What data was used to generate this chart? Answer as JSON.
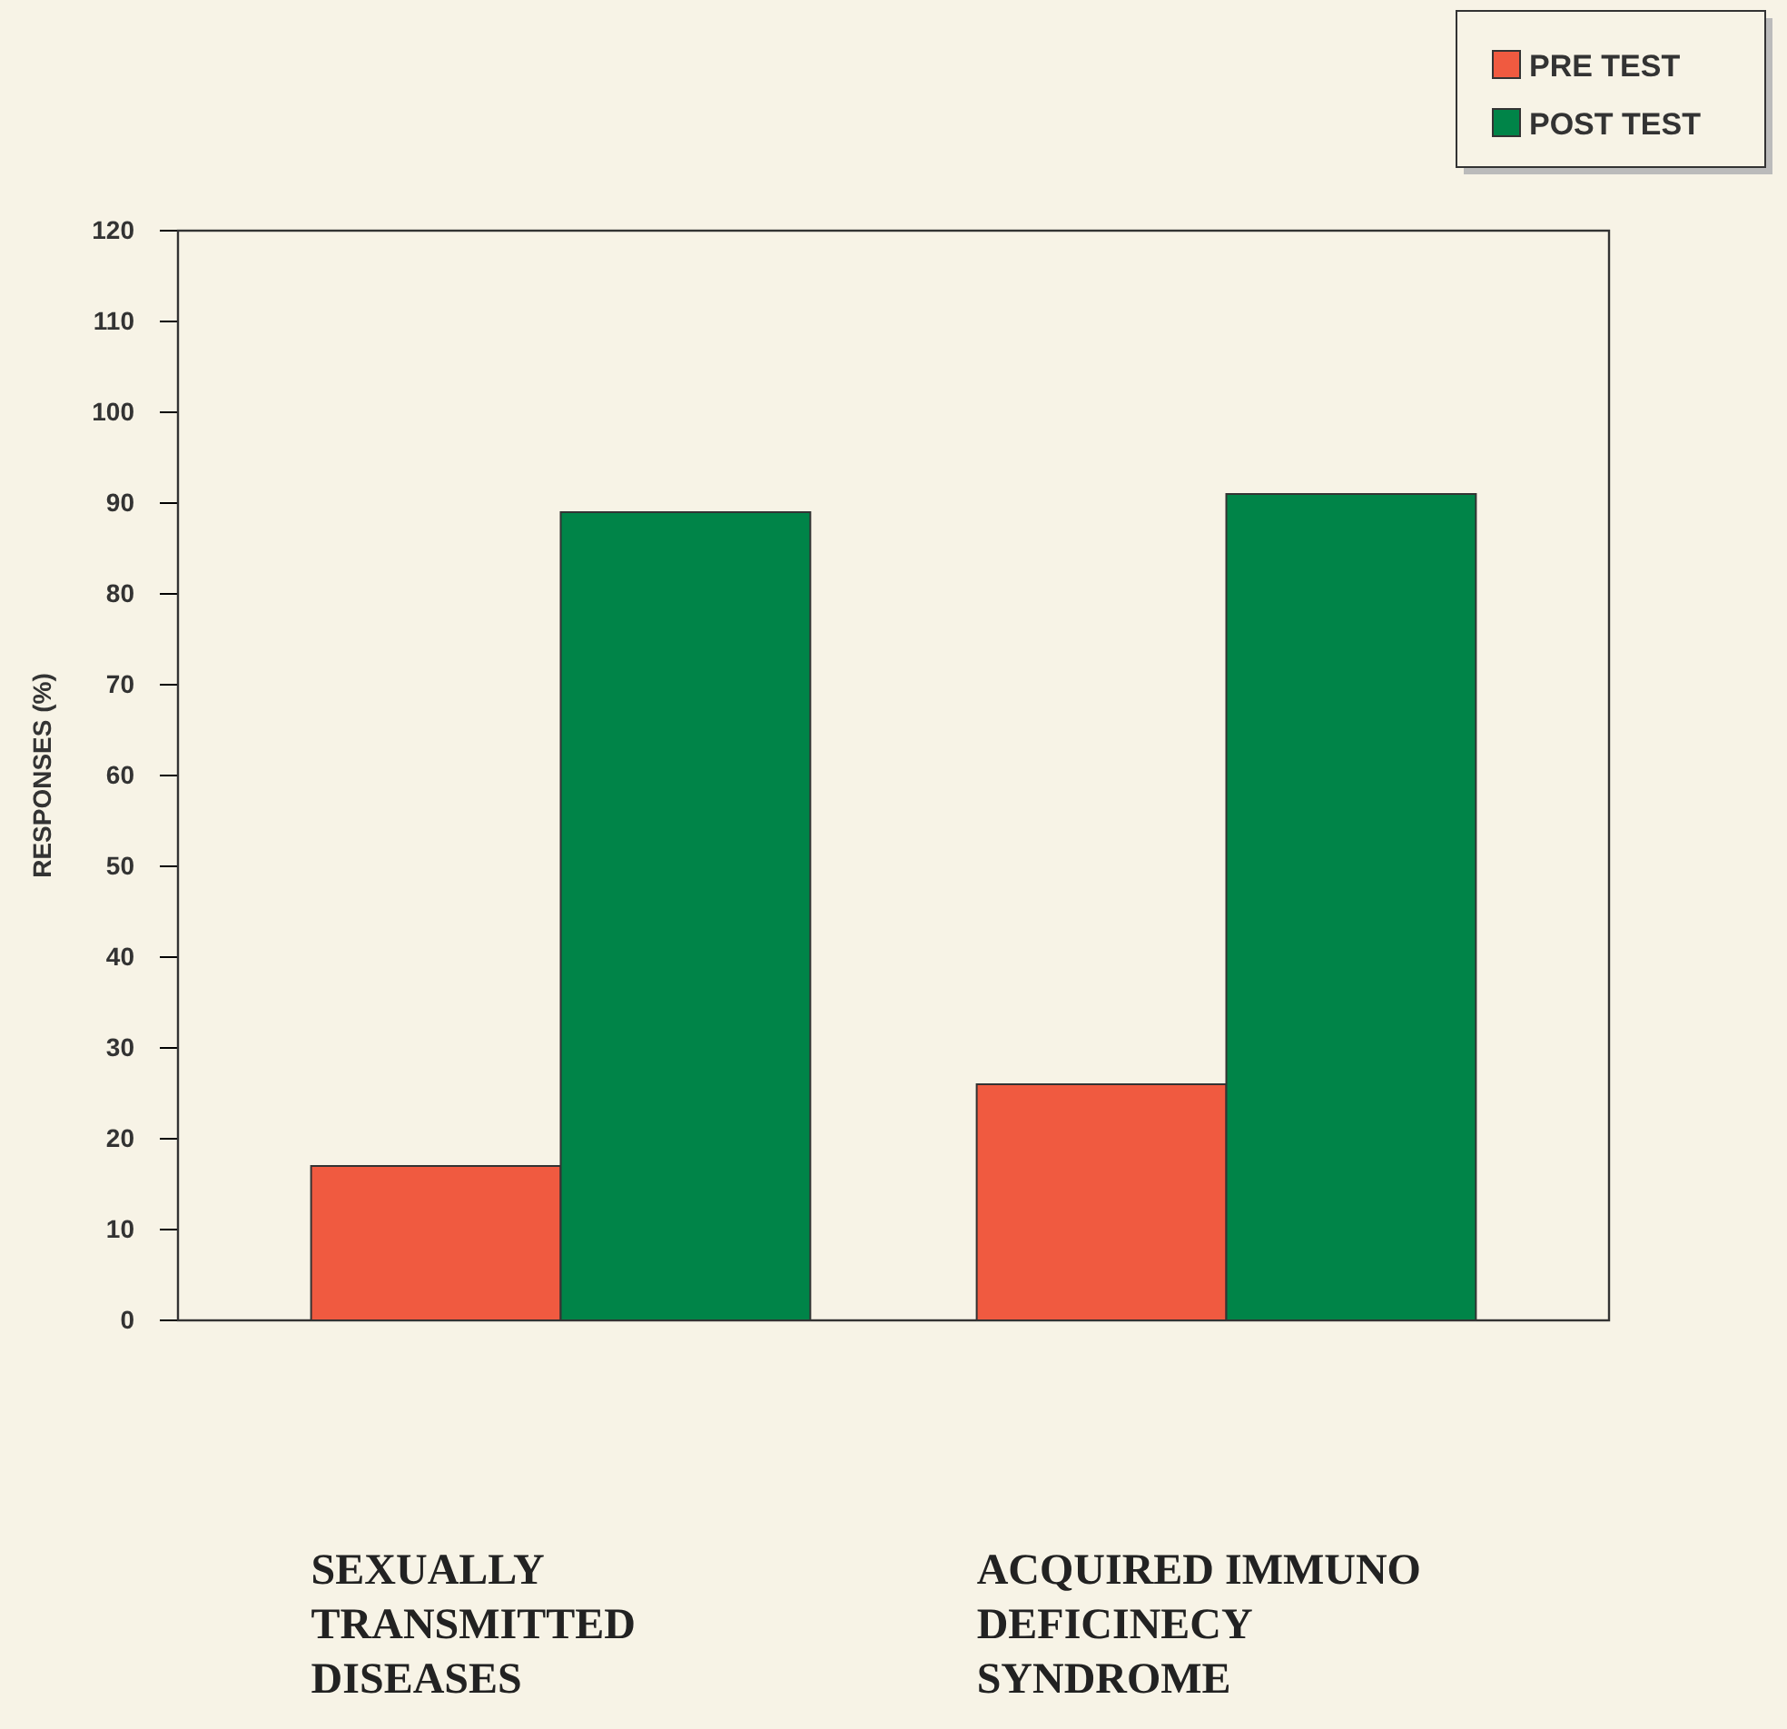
{
  "chart_data": {
    "type": "bar",
    "ylabel": "RESPONSES (%)",
    "categories": [
      "SEXUALLY TRANSMITTED DISEASES",
      "ACQUIRED IMMUNO DEFICINECY SYNDROME"
    ],
    "series": [
      {
        "name": "PRE TEST",
        "color": "#f05a40",
        "values": [
          17,
          26
        ]
      },
      {
        "name": "POST TEST",
        "color": "#008448",
        "values": [
          89,
          91
        ]
      }
    ],
    "ylim": [
      0,
      120
    ],
    "yticks": [
      0,
      10,
      20,
      30,
      40,
      50,
      60,
      70,
      80,
      90,
      100,
      110,
      120
    ],
    "grid": false,
    "legend": "top right"
  }
}
